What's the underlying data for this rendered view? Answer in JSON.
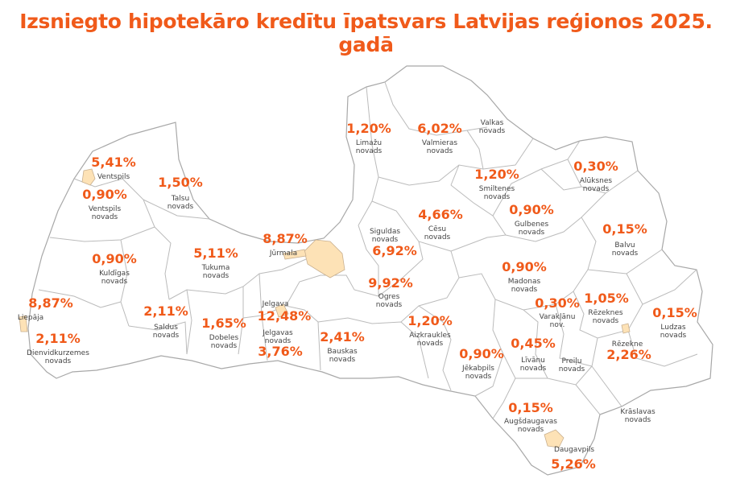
{
  "title": "Izsniegto hipotekāro kredītu īpatsvars Latvijas reģionos 2025. gadā",
  "colors": {
    "accent": "#f05a1a",
    "city_fill": "#fde2b6",
    "border": "#bbbbbb",
    "label": "#444444"
  },
  "regions": [
    {
      "id": "ventspils",
      "value": "5,41%",
      "name": [
        "Ventspils"
      ]
    },
    {
      "id": "ventspils-novads",
      "value": "0,90%",
      "name": [
        "Ventspils",
        "novads"
      ]
    },
    {
      "id": "talsu-novads",
      "value": "1,50%",
      "name": [
        "Talsu",
        "novads"
      ]
    },
    {
      "id": "jurmala",
      "value": "8,87%",
      "name": [
        "Jūrmala"
      ]
    },
    {
      "id": "tukuma-novads",
      "value": "5,11%",
      "name": [
        "Tukuma",
        "novads"
      ]
    },
    {
      "id": "kuldigas-novads",
      "value": "0,90%",
      "name": [
        "Kuldīgas",
        "novads"
      ]
    },
    {
      "id": "liepaja",
      "value": "8,87%",
      "name": [
        "Liepāja"
      ]
    },
    {
      "id": "dienvidkurzemes-novads",
      "value": "2,11%",
      "name": [
        "Dienvidkurzemes",
        "novads"
      ]
    },
    {
      "id": "saldus-novads",
      "value": "2,11%",
      "name": [
        "Saldus",
        "novads"
      ]
    },
    {
      "id": "dobeles-novads",
      "value": "1,65%",
      "name": [
        "Dobeles",
        "novads"
      ]
    },
    {
      "id": "jelgava",
      "value": "12,48%",
      "name": [
        "Jelgava"
      ]
    },
    {
      "id": "jelgavas-novads",
      "value": "3,76%",
      "name": [
        "Jelgavas",
        "novads"
      ]
    },
    {
      "id": "bauskas-novads",
      "value": "2,41%",
      "name": [
        "Bauskas",
        "novads"
      ]
    },
    {
      "id": "limazu-novads",
      "value": "1,20%",
      "name": [
        "Limažu",
        "novads"
      ]
    },
    {
      "id": "valmieras-novads",
      "value": "6,02%",
      "name": [
        "Valmieras",
        "novads"
      ]
    },
    {
      "id": "valkas-novads",
      "value": "",
      "name": [
        "Valkas",
        "novads"
      ]
    },
    {
      "id": "smiltenes-novads",
      "value": "1,20%",
      "name": [
        "Smiltenes",
        "novads"
      ]
    },
    {
      "id": "aluksnes-novads",
      "value": "0,30%",
      "name": [
        "Alūksnes",
        "novads"
      ]
    },
    {
      "id": "cesu-novads",
      "value": "4,66%",
      "name": [
        "Cēsu",
        "novads"
      ]
    },
    {
      "id": "gulbenes-novads",
      "value": "0,90%",
      "name": [
        "Gulbenes",
        "novads"
      ]
    },
    {
      "id": "balvu-novads",
      "value": "0,15%",
      "name": [
        "Balvu",
        "novads"
      ]
    },
    {
      "id": "siguldas-novads",
      "value": "6,92%",
      "name": [
        "Siguldas",
        "novads"
      ]
    },
    {
      "id": "ogres-novads",
      "value": "9,92%",
      "name": [
        "Ogres",
        "novads"
      ]
    },
    {
      "id": "madonas-novads",
      "value": "0,90%",
      "name": [
        "Madonas",
        "novads"
      ]
    },
    {
      "id": "varaklanu-nov",
      "value": "0,30%",
      "name": [
        "Varakļānu",
        "nov."
      ]
    },
    {
      "id": "rezeknes-novads",
      "value": "1,05%",
      "name": [
        "Rēzeknes",
        "novads"
      ]
    },
    {
      "id": "ludzas-novads",
      "value": "0,15%",
      "name": [
        "Ludzas",
        "novads"
      ]
    },
    {
      "id": "aizkraukles-novads",
      "value": "1,20%",
      "name": [
        "Aizkraukles",
        "novads"
      ]
    },
    {
      "id": "jekabpils-novads",
      "value": "0,90%",
      "name": [
        "Jēkabpils",
        "novads"
      ]
    },
    {
      "id": "livanu-novads",
      "value": "0,45%",
      "name": [
        "Līvānu",
        "novads"
      ]
    },
    {
      "id": "preilu-novads",
      "value": "",
      "name": [
        "Preiļu",
        "novads"
      ]
    },
    {
      "id": "rezekne",
      "value": "2,26%",
      "name": [
        "Rēzekne"
      ]
    },
    {
      "id": "augsdaugavas-novads",
      "value": "0,15%",
      "name": [
        "Augšdaugavas",
        "novads"
      ]
    },
    {
      "id": "kraslavas-novads",
      "value": "",
      "name": [
        "Krāslavas",
        "novads"
      ]
    },
    {
      "id": "daugavpils",
      "value": "5,26%",
      "name": [
        "Daugavpils"
      ]
    }
  ]
}
